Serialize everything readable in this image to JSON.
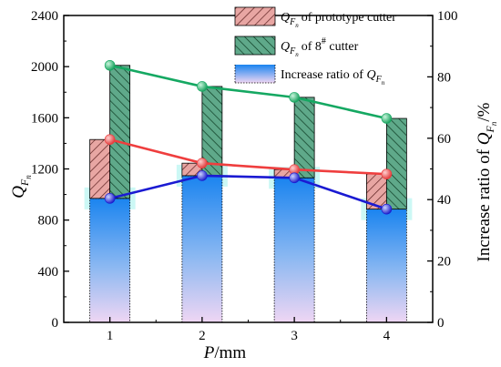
{
  "chart_data": {
    "type": "bar",
    "categories": [
      "1",
      "2",
      "3",
      "4"
    ],
    "xlabel_italic": "P",
    "xlabel_unit": "/mm",
    "ylabel_left_main": "Q",
    "ylabel_left_sub": "F",
    "ylabel_left_subsub": "n",
    "ylim_left": [
      0,
      2400
    ],
    "yticks_left": [
      "0",
      "400",
      "800",
      "1200",
      "1600",
      "2000",
      "2400"
    ],
    "ylabel_right_main": "Increase ratio of ",
    "ylabel_right_q": "Q",
    "ylabel_right_sub": "F",
    "ylabel_right_subsub": "n",
    "ylabel_right_unit": "/%",
    "ylim_right": [
      0,
      100
    ],
    "yticks_right": [
      "0",
      "20",
      "40",
      "60",
      "80",
      "100"
    ],
    "series": [
      {
        "name": "of  prototype cutter",
        "legend_q": "Q",
        "legend_sub": "F",
        "legend_subsub": "n",
        "kind": "bar+line",
        "axis": "left",
        "values": [
          1430,
          1245,
          1195,
          1160
        ],
        "color": "#ef3e3e",
        "fill": "#e8a6a3"
      },
      {
        "name": "of  8",
        "name_sup": "#",
        "name_tail": " cutter",
        "legend_q": "Q",
        "legend_sub": "F",
        "legend_subsub": "n",
        "kind": "bar+line",
        "axis": "left",
        "values": [
          2010,
          1845,
          1760,
          1595
        ],
        "color": "#15a862",
        "fill": "#5fa98a"
      },
      {
        "name": "Increase ratio of ",
        "legend_q": "Q",
        "legend_sub": "F",
        "legend_subsub": "n",
        "kind": "bar+line",
        "axis": "right",
        "values": [
          40.4,
          47.8,
          47.1,
          36.9
        ],
        "color": "#1a1ad2",
        "fill_top": "#1a84f0",
        "fill_bottom": "#efd6f3"
      }
    ],
    "legend_position": "top-right",
    "grid": false
  }
}
